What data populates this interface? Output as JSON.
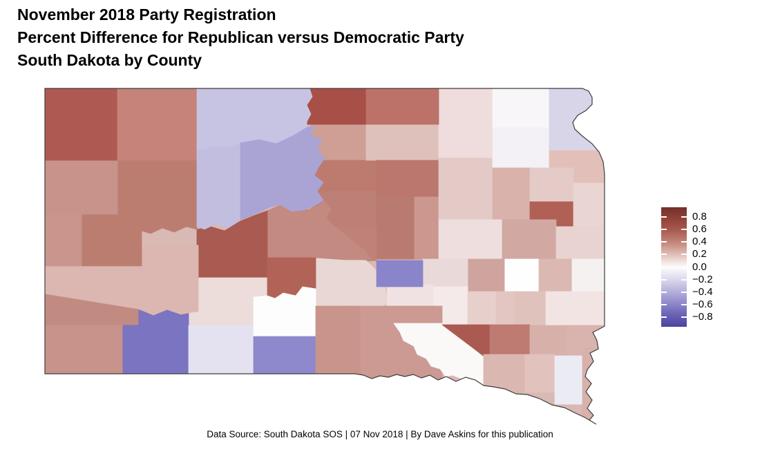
{
  "title": {
    "line1": "November 2018 Party Registration",
    "line2": "Percent Difference for Republican versus Democratic Party",
    "line3": "South Dakota by County"
  },
  "footer": "Data Source: South Dakota SOS | 07 Nov 2018 | By Dave Askins for this publication",
  "legend": {
    "tick_labels": [
      "0.8",
      "0.6",
      "0.4",
      "0.2",
      "0.0",
      "−0.2",
      "−0.4",
      "−0.6",
      "−0.8"
    ],
    "tick_values": [
      0.8,
      0.6,
      0.4,
      0.2,
      0.0,
      -0.2,
      -0.4,
      -0.6,
      -0.8
    ],
    "top_color": "#72302b",
    "mid_color": "#fdfcfc",
    "bottom_color": "#4b44a0",
    "position": "right"
  },
  "chart_data": {
    "type": "choropleth",
    "region": "South Dakota by County",
    "measure": "Percent difference, Republican versus Democratic party registration",
    "scale_range": [
      -0.96,
      0.96
    ],
    "state_border_color": "#3c3c3c",
    "counties": [
      {
        "name": "Harding",
        "value": 0.57,
        "fill": "#ae5a52"
      },
      {
        "name": "Perkins",
        "value": 0.41,
        "fill": "#c5837a"
      },
      {
        "name": "Corson",
        "value": -0.3,
        "fill": "#c7c4e3"
      },
      {
        "name": "Campbell",
        "value": 0.61,
        "fill": "#a85048"
      },
      {
        "name": "McPherson",
        "value": 0.47,
        "fill": "#bd7269"
      },
      {
        "name": "Brown",
        "value": 0.11,
        "fill": "#efdcdc"
      },
      {
        "name": "Marshall",
        "value": -0.02,
        "fill": "#f8f6f8"
      },
      {
        "name": "Roberts",
        "value": -0.21,
        "fill": "#d8d5e9"
      },
      {
        "name": "Butte",
        "value": 0.37,
        "fill": "#c8938b"
      },
      {
        "name": "Ziebach",
        "value": -0.32,
        "fill": "#c2bedf"
      },
      {
        "name": "Dewey",
        "value": -0.46,
        "fill": "#a9a4d4"
      },
      {
        "name": "Walworth",
        "value": 0.33,
        "fill": "#cf9f96"
      },
      {
        "name": "Edmunds",
        "value": 0.23,
        "fill": "#dfc1bc"
      },
      {
        "name": "Day",
        "value": -0.04,
        "fill": "#f3f1f6"
      },
      {
        "name": "Grant",
        "value": 0.2,
        "fill": "#e2c0b9"
      },
      {
        "name": "Meade",
        "value": 0.47,
        "fill": "#bc7d71"
      },
      {
        "name": "Lawrence",
        "value": 0.38,
        "fill": "#c9958d"
      },
      {
        "name": "Potter",
        "value": 0.48,
        "fill": "#bd7a6f"
      },
      {
        "name": "Faulk",
        "value": 0.48,
        "fill": "#bb776d"
      },
      {
        "name": "Spink",
        "value": 0.19,
        "fill": "#e4cac7"
      },
      {
        "name": "Clark",
        "value": 0.28,
        "fill": "#d8b2ab"
      },
      {
        "name": "Codington",
        "value": 0.18,
        "fill": "#e5cbc8"
      },
      {
        "name": "Deuel",
        "value": 0.16,
        "fill": "#e9d5d2"
      },
      {
        "name": "Hamlin",
        "value": 0.56,
        "fill": "#b06055"
      },
      {
        "name": "Sully",
        "value": 0.46,
        "fill": "#bd8077"
      },
      {
        "name": "Hyde",
        "value": 0.5,
        "fill": "#b97b71"
      },
      {
        "name": "Hand",
        "value": 0.37,
        "fill": "#cb978f"
      },
      {
        "name": "Beadle",
        "value": 0.12,
        "fill": "#eedede"
      },
      {
        "name": "Kingsbury",
        "value": 0.32,
        "fill": "#d2a8a3"
      },
      {
        "name": "Brookings",
        "value": 0.16,
        "fill": "#e9d3d0"
      },
      {
        "name": "Pennington",
        "value": 0.25,
        "fill": "#dcb7b1"
      },
      {
        "name": "Haakon",
        "value": 0.6,
        "fill": "#a95a51"
      },
      {
        "name": "Stanley",
        "value": 0.42,
        "fill": "#c38a81"
      },
      {
        "name": "Hughes",
        "value": 0.45,
        "fill": "#bf8278"
      },
      {
        "name": "Jones",
        "value": 0.54,
        "fill": "#b26358"
      },
      {
        "name": "Lyman",
        "value": 0.16,
        "fill": "#e9d7d5"
      },
      {
        "name": "Buffalo",
        "value": -0.62,
        "fill": "#8a84ca"
      },
      {
        "name": "Jerauld",
        "value": 0.15,
        "fill": "#ead9d9"
      },
      {
        "name": "Sanborn",
        "value": 0.34,
        "fill": "#cfa49e"
      },
      {
        "name": "Miner",
        "value": 0.0,
        "fill": "#fefefe"
      },
      {
        "name": "Lake",
        "value": 0.25,
        "fill": "#dcb8b2"
      },
      {
        "name": "Moody",
        "value": 0.06,
        "fill": "#f6f1f1"
      },
      {
        "name": "Custer",
        "value": 0.43,
        "fill": "#c28b82"
      },
      {
        "name": "Fall River",
        "value": 0.39,
        "fill": "#c8938b"
      },
      {
        "name": "Oglala Lakota",
        "value": -0.7,
        "fill": "#7b74c1"
      },
      {
        "name": "Jackson",
        "value": 0.13,
        "fill": "#ecdcda"
      },
      {
        "name": "Bennett",
        "value": -0.14,
        "fill": "#e4e2f0"
      },
      {
        "name": "Mellette",
        "value": 0.01,
        "fill": "#fdfdfd"
      },
      {
        "name": "Todd",
        "value": -0.6,
        "fill": "#8e88cc"
      },
      {
        "name": "Tripp",
        "value": 0.38,
        "fill": "#c9948b"
      },
      {
        "name": "Gregory",
        "value": 0.36,
        "fill": "#cc9a92"
      },
      {
        "name": "Brule",
        "value": 0.11,
        "fill": "#f0e2e2"
      },
      {
        "name": "Aurora",
        "value": 0.08,
        "fill": "#f4eaea"
      },
      {
        "name": "Davison",
        "value": 0.17,
        "fill": "#e7cfcc"
      },
      {
        "name": "Hanson",
        "value": 0.2,
        "fill": "#e3c6c2"
      },
      {
        "name": "McCook",
        "value": 0.22,
        "fill": "#e0c2bd"
      },
      {
        "name": "Minnehaha",
        "value": 0.09,
        "fill": "#f2e4e3"
      },
      {
        "name": "Charles Mix",
        "value": 0.03,
        "fill": "#fbf8f8"
      },
      {
        "name": "Douglas",
        "value": 0.59,
        "fill": "#ab5a51"
      },
      {
        "name": "Hutchinson",
        "value": 0.47,
        "fill": "#bd7b72"
      },
      {
        "name": "Bon Homme",
        "value": 0.25,
        "fill": "#dbb7b1"
      },
      {
        "name": "Yankton",
        "value": 0.2,
        "fill": "#e2c2bd"
      },
      {
        "name": "Clay",
        "value": -0.11,
        "fill": "#ebebf4"
      },
      {
        "name": "Union",
        "value": 0.28,
        "fill": "#d8b1ab"
      },
      {
        "name": "Turner",
        "value": 0.28,
        "fill": "#d7b0aa"
      },
      {
        "name": "Lincoln",
        "value": 0.27,
        "fill": "#d9b3ad"
      }
    ]
  }
}
